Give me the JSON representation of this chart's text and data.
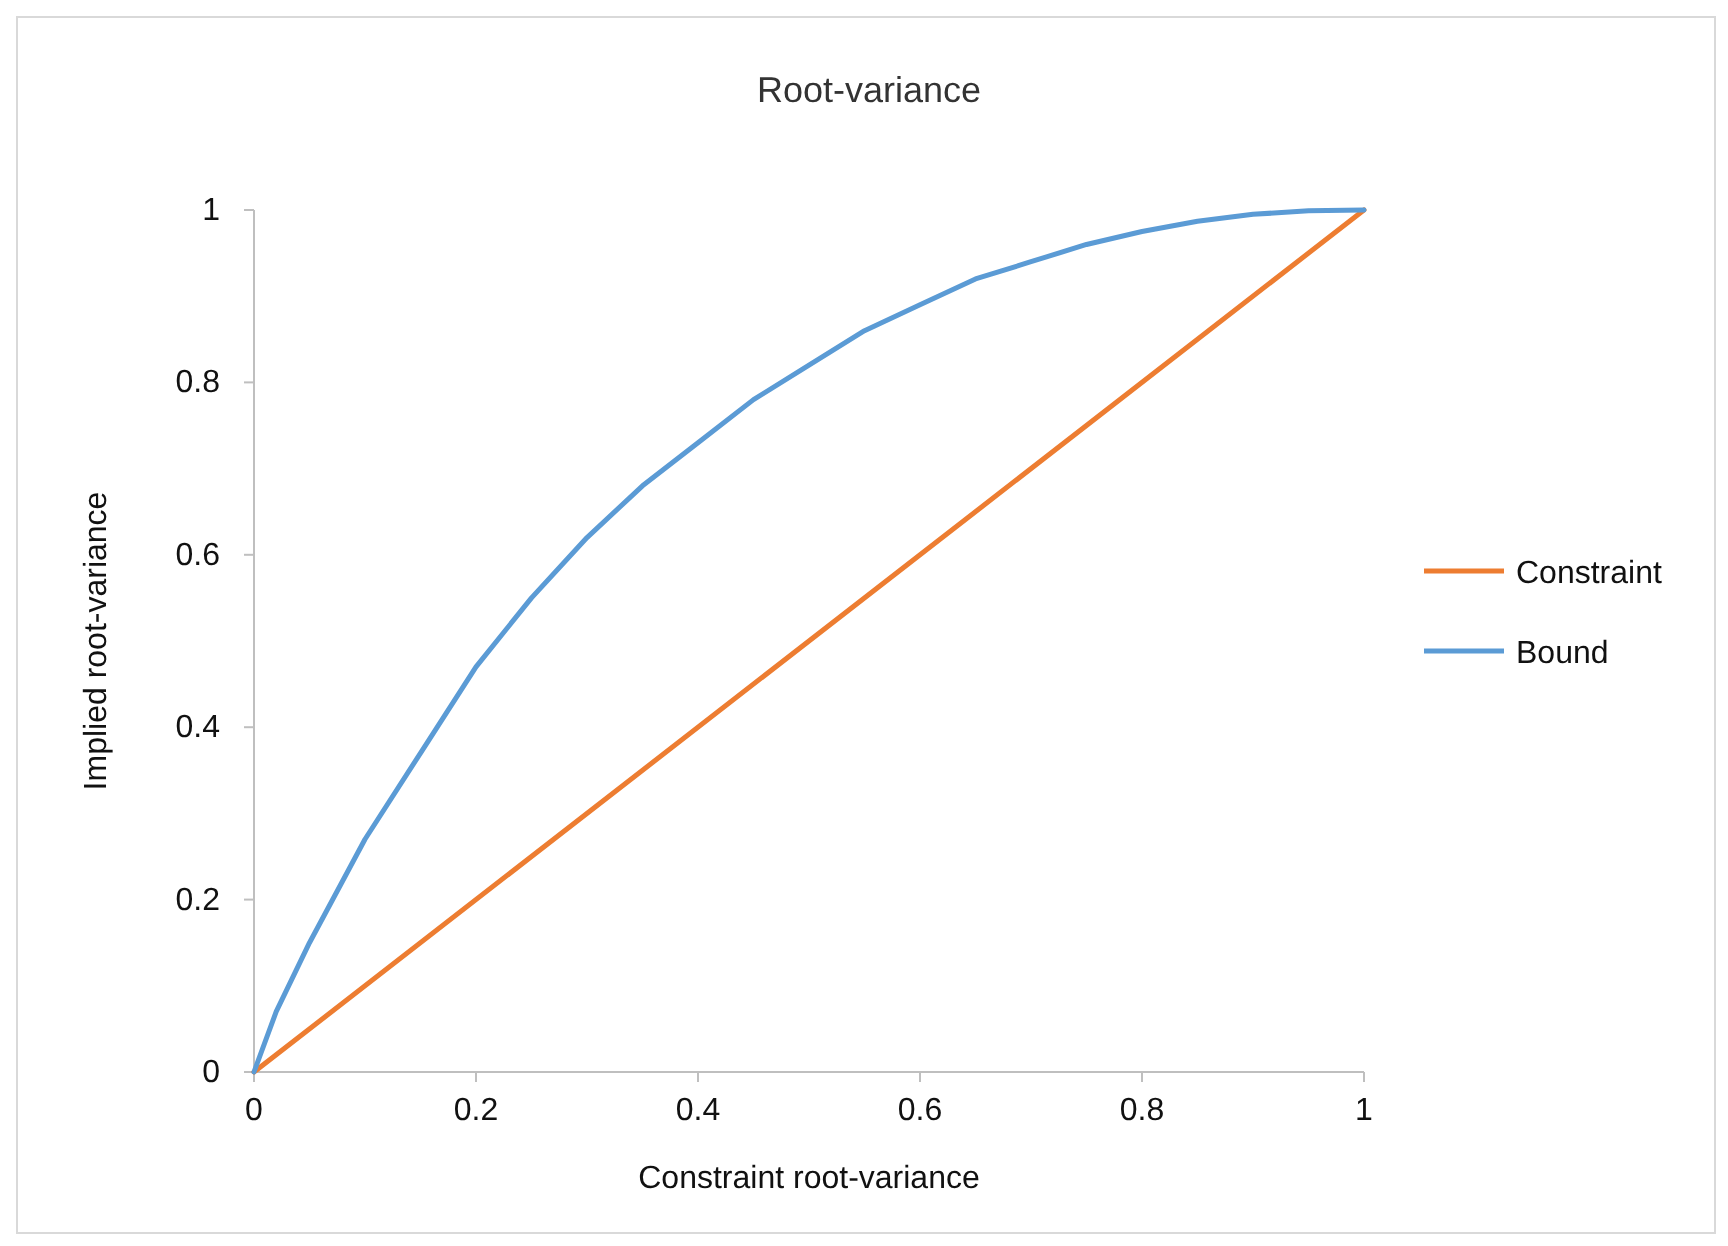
{
  "chart_data": {
    "type": "line",
    "title": "Root-variance",
    "xlabel": "Constraint root-variance",
    "ylabel": "Implied root-variance",
    "xlim": [
      0,
      1
    ],
    "ylim": [
      0,
      1
    ],
    "xticks": [
      0,
      0.2,
      0.4,
      0.6,
      0.8,
      1
    ],
    "yticks": [
      0,
      0.2,
      0.4,
      0.6,
      0.8,
      1
    ],
    "grid": false,
    "legend": "right",
    "marker": "none",
    "line_style": "solid",
    "series": [
      {
        "name": "Constraint",
        "color": "#ed7d31",
        "x": [
          0,
          1
        ],
        "values": [
          0,
          1
        ]
      },
      {
        "name": "Bound",
        "color": "#5b9bd5",
        "x": [
          0,
          0.02,
          0.05,
          0.1,
          0.15,
          0.2,
          0.25,
          0.3,
          0.35,
          0.4,
          0.45,
          0.5,
          0.55,
          0.6,
          0.65,
          0.7,
          0.75,
          0.8,
          0.85,
          0.9,
          0.95,
          1
        ],
        "values": [
          0,
          0.07,
          0.15,
          0.27,
          0.37,
          0.47,
          0.55,
          0.62,
          0.68,
          0.73,
          0.78,
          0.82,
          0.86,
          0.89,
          0.92,
          0.94,
          0.96,
          0.975,
          0.987,
          0.995,
          0.999,
          1
        ]
      }
    ]
  }
}
